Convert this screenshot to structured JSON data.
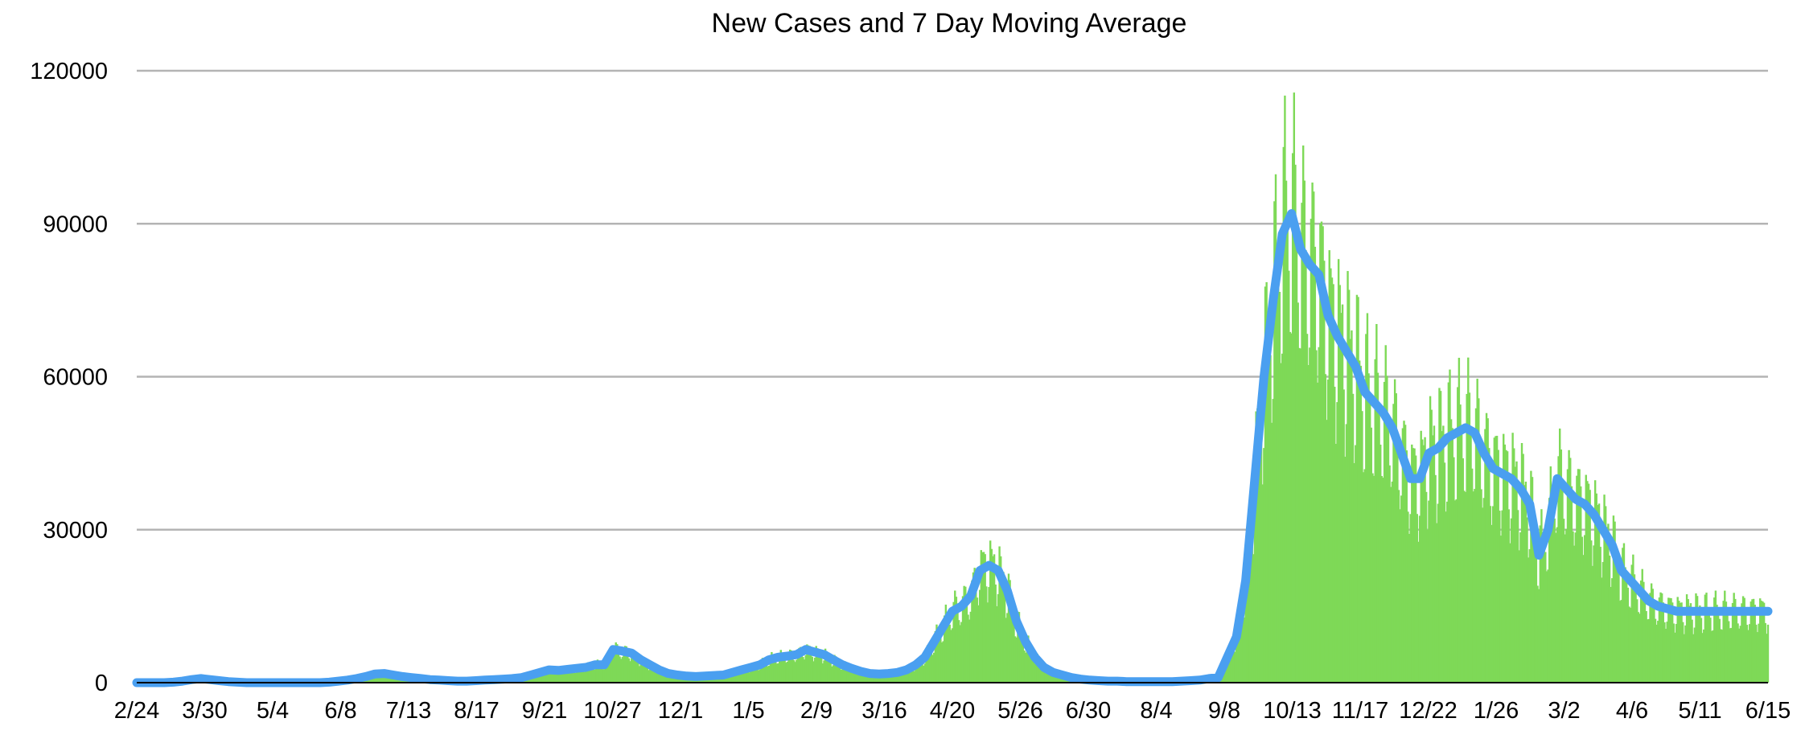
{
  "chart_data": {
    "type": "bar+line",
    "title": "New Cases and 7 Day Moving Average",
    "xlabel": "",
    "ylabel": "",
    "ylim": [
      0,
      120000
    ],
    "y_ticks": [
      "0",
      "30000",
      "60000",
      "90000",
      "120000"
    ],
    "x_tick_labels": [
      "2/24",
      "3/30",
      "5/4",
      "6/8",
      "7/13",
      "8/17",
      "9/21",
      "10/27",
      "12/1",
      "1/5",
      "2/9",
      "3/16",
      "4/20",
      "5/26",
      "6/30",
      "8/4",
      "9/8",
      "10/13",
      "11/17",
      "12/22",
      "1/26",
      "3/2",
      "4/6",
      "5/11",
      "6/15"
    ],
    "grid": true,
    "legend": "none",
    "colors": {
      "bars": "#7ed957",
      "line": "#4a9ff0",
      "grid": "#b4b4b4"
    },
    "weekly_index": [
      0,
      1,
      2,
      3,
      4,
      5,
      6,
      7,
      8,
      9,
      10,
      11,
      12,
      13,
      14,
      15,
      16,
      17,
      18,
      19,
      20,
      21,
      22,
      23,
      24,
      25,
      26,
      27,
      28,
      29,
      30,
      31,
      32,
      33,
      34,
      35,
      36,
      37,
      38,
      39,
      40,
      41,
      42,
      43,
      44,
      45,
      46,
      47,
      48,
      49,
      50,
      51,
      52,
      53,
      54,
      55,
      56,
      57,
      58,
      59,
      60,
      61,
      62,
      63,
      64,
      65,
      66,
      67,
      68,
      69,
      70,
      71,
      72,
      73,
      74,
      75,
      76,
      77,
      78,
      79,
      80,
      81,
      82,
      83,
      84,
      85,
      86,
      87,
      88,
      89,
      90,
      91,
      92,
      93,
      94,
      95,
      96,
      97,
      98,
      99,
      100,
      101,
      102,
      103,
      104,
      105,
      106,
      107,
      108,
      109,
      110,
      111,
      112,
      113,
      114,
      115,
      116,
      117,
      118,
      119,
      120,
      121,
      122,
      123,
      124,
      125,
      126,
      127,
      128,
      129,
      130,
      131,
      132,
      133,
      134,
      135,
      136,
      137,
      138,
      139,
      140,
      141,
      142,
      143,
      144,
      145,
      146,
      147,
      148,
      149,
      150,
      151,
      152,
      153,
      154,
      155,
      156,
      157,
      158,
      159,
      160,
      161,
      162,
      163,
      164,
      165,
      166,
      167,
      168,
      169,
      170,
      171,
      172,
      173,
      174,
      175
    ],
    "series": [
      {
        "kind": "line",
        "values": [
          0,
          0,
          0,
          0,
          100,
          300,
          600,
          800,
          600,
          400,
          200,
          100,
          0,
          0,
          0,
          0,
          0,
          0,
          0,
          0,
          0,
          100,
          300,
          500,
          800,
          1200,
          1700,
          1800,
          1500,
          1200,
          1000,
          800,
          600,
          500,
          400,
          300,
          300,
          400,
          500,
          600,
          700,
          800,
          1000,
          1500,
          2000,
          2500,
          2400,
          2600,
          2800,
          3000,
          3500,
          3500,
          6500,
          6200,
          5800,
          4500,
          3500,
          2500,
          1800,
          1500,
          1300,
          1200,
          1300,
          1400,
          1500,
          2000,
          2500,
          3000,
          3500,
          4500,
          5000,
          5200,
          5500,
          6500,
          6000,
          5500,
          4500,
          3500,
          2800,
          2200,
          1800,
          1700,
          1800,
          2000,
          2500,
          3500,
          5000,
          8000,
          11000,
          14000,
          15000,
          17000,
          22000,
          23000,
          22000,
          18000,
          12000,
          8000,
          5000,
          3000,
          2000,
          1500,
          1000,
          700,
          500,
          400,
          300,
          300,
          200,
          200,
          200,
          200,
          200,
          200,
          300,
          400,
          500,
          800,
          1000,
          5000,
          9000,
          20000,
          40000,
          60000,
          75000,
          88000,
          92000,
          85000,
          82000,
          80000,
          72000,
          68000,
          65000,
          62000,
          57000,
          55000,
          53000,
          50000,
          45000,
          40000,
          40000,
          45000,
          46000,
          48000,
          49000,
          50000,
          49000,
          45000,
          42000,
          41000,
          40000,
          38000,
          35000,
          25000,
          30000,
          40000,
          38000,
          36000,
          35000,
          33000,
          30000,
          27000,
          22000,
          20000,
          18000,
          16000,
          15000,
          14500,
          14000,
          14000,
          14000,
          14000,
          14000,
          14000,
          14000,
          14000,
          14000,
          14000,
          14000
        ]
      }
    ]
  }
}
